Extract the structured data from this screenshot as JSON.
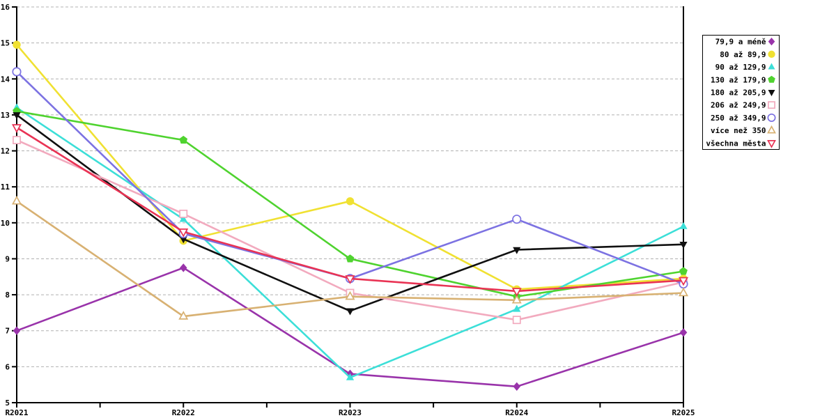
{
  "colors": {
    "background": "#ffffff",
    "grid": "#b0b0b0",
    "axis": "#000000",
    "legend_border": "#000000",
    "legend_background": "#ffffff"
  },
  "chart_data": {
    "type": "line",
    "title": "",
    "xlabel": "",
    "ylabel": "",
    "categories": [
      "R2021",
      "R2022",
      "R2023",
      "R2024",
      "R2025"
    ],
    "ylim": [
      5,
      16
    ],
    "y_ticks": [
      5,
      6,
      7,
      8,
      9,
      10,
      11,
      12,
      13,
      14,
      15,
      16
    ],
    "grid": "horizontal-dashed",
    "legend_position": "outside-right",
    "series": [
      {
        "name": "79,9 a méně",
        "color": "#9933aa",
        "marker": "diamond",
        "fill": "filled",
        "values": [
          7.0,
          8.75,
          5.8,
          5.45,
          6.95
        ]
      },
      {
        "name": "80 až 89,9",
        "color": "#f0e132",
        "marker": "circle",
        "fill": "filled",
        "values": [
          14.95,
          9.5,
          10.6,
          8.15,
          8.45
        ]
      },
      {
        "name": "90 až 129,9",
        "color": "#3cdfd8",
        "marker": "triangle-up",
        "fill": "filled",
        "values": [
          13.2,
          10.1,
          5.7,
          7.6,
          9.9
        ]
      },
      {
        "name": "130 až 179,9",
        "color": "#4fd32f",
        "marker": "pentagon",
        "fill": "filled",
        "values": [
          13.1,
          12.3,
          9.0,
          7.95,
          8.65
        ]
      },
      {
        "name": "180 až 205,9",
        "color": "#101010",
        "marker": "triangle-down",
        "fill": "filled",
        "values": [
          13.0,
          9.55,
          7.55,
          9.25,
          9.4
        ]
      },
      {
        "name": "206 až 249,9",
        "color": "#f2aabe",
        "marker": "square",
        "fill": "open",
        "values": [
          12.3,
          10.25,
          8.05,
          7.3,
          8.35
        ]
      },
      {
        "name": "250 až 349,9",
        "color": "#7c72e2",
        "marker": "circle",
        "fill": "open",
        "values": [
          14.2,
          9.7,
          8.45,
          10.1,
          8.3
        ]
      },
      {
        "name": "více než 350",
        "color": "#d8b172",
        "marker": "triangle-up",
        "fill": "open",
        "values": [
          10.6,
          7.4,
          7.95,
          7.85,
          8.05
        ]
      },
      {
        "name": "všechna města",
        "color": "#e93354",
        "marker": "triangle-down",
        "fill": "open",
        "values": [
          12.65,
          9.75,
          8.45,
          8.1,
          8.4
        ]
      }
    ]
  }
}
